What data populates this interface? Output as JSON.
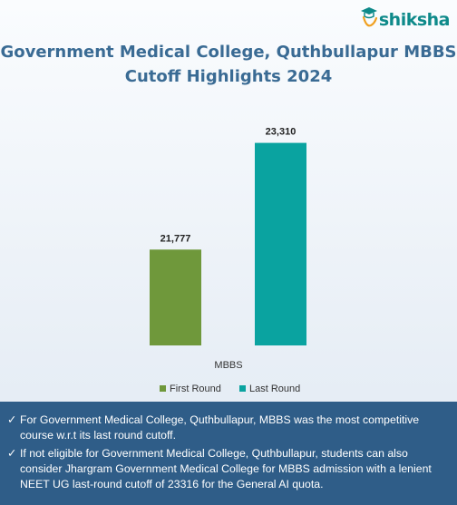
{
  "brand": {
    "name": "shiksha",
    "color": "#0e8a8a"
  },
  "title_line1": "Government Medical College, Quthbullapur MBBS",
  "title_line2": "Cutoff Highlights 2024",
  "chart_data": {
    "type": "bar",
    "categories": [
      "MBBS"
    ],
    "series": [
      {
        "name": "First Round",
        "values": [
          21777
        ],
        "labels": [
          "21,777"
        ],
        "color": "#6f983b"
      },
      {
        "name": "Last Round",
        "values": [
          23310
        ],
        "labels": [
          "23,310"
        ],
        "color": "#0aa3a0"
      }
    ],
    "title": "Government Medical College, Quthbullapur MBBS Cutoff Highlights 2024",
    "xlabel": "",
    "ylabel": "",
    "ylim": [
      20400,
      23500
    ],
    "grid": false,
    "legend": "bottom-center"
  },
  "footer": {
    "bullets": [
      "For Government Medical College, Quthbullapur, MBBS was the most competitive course w.r.t its last round cutoff.",
      "If not eligible for Government Medical College, Quthbullapur, students can also consider Jhargram Government Medical College for MBBS admission with a lenient NEET UG last-round cutoff of 23316 for the General AI quota."
    ],
    "check_symbol": "✓"
  }
}
